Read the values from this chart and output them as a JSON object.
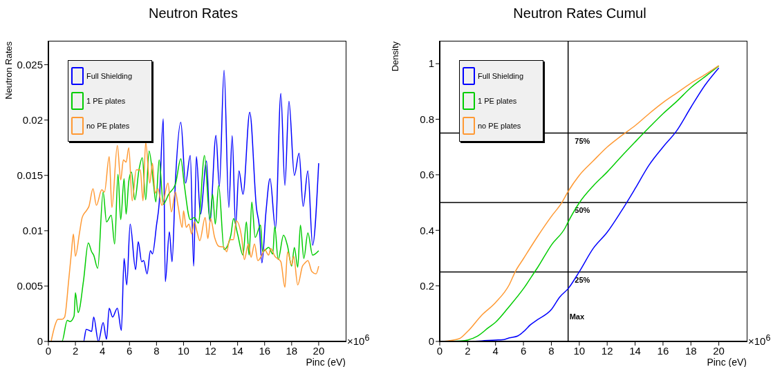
{
  "chart_data": [
    {
      "type": "line",
      "title": "Neutron Rates",
      "xlabel": "Pinc (eV)",
      "ylabel": "Neutron Rates",
      "legend": "top left",
      "annotations": [
        "×10$^{6}$"
      ],
      "xlim": [
        0,
        22
      ],
      "xticks": [
        0,
        2,
        4,
        6,
        8,
        10,
        12,
        14,
        16,
        18,
        20
      ],
      "ylim": [
        0,
        0.0271
      ],
      "yticks": [
        0,
        0.005,
        0.01,
        0.015,
        0.02,
        0.025
      ],
      "series": [
        {
          "name": "Full Shielding",
          "color": "#0000ff",
          "x": [
            0,
            2.6,
            2.8,
            3.2,
            3.35,
            3.7,
            4.05,
            4.3,
            4.5,
            4.75,
            5.1,
            5.4,
            5.6,
            5.8,
            6.05,
            6.45,
            6.65,
            6.9,
            7.05,
            7.3,
            7.55,
            7.7,
            8.0,
            8.2,
            8.5,
            8.65,
            8.95,
            9.15,
            9.4,
            9.8,
            10.15,
            10.5,
            10.75,
            10.95,
            11.25,
            11.7,
            11.95,
            12.4,
            12.65,
            13.0,
            13.35,
            13.6,
            13.85,
            14.1,
            14.4,
            14.9,
            15.4,
            15.6,
            15.8,
            16.1,
            16.4,
            16.8,
            17.2,
            17.5,
            17.8,
            18.2,
            18.55,
            18.85,
            19.2,
            19.55,
            20.0
          ],
          "values": [
            0,
            0,
            0.0011,
            0.0009,
            0.0022,
            0,
            0.0017,
            0.0002,
            0.003,
            0.0022,
            0.003,
            0.001,
            0.0075,
            0.0051,
            0.0106,
            0.0065,
            0.009,
            0.0072,
            0.0073,
            0.0061,
            0.0082,
            0.0079,
            0.0105,
            0.0125,
            0.0201,
            0.0054,
            0.0099,
            0.0072,
            0.0145,
            0.0198,
            0.0143,
            0.0168,
            0.0068,
            0.0167,
            0.0115,
            0.0163,
            0.0108,
            0.0186,
            0.014,
            0.0245,
            0.0121,
            0.0186,
            0.0104,
            0.0154,
            0.0133,
            0.0207,
            0.012,
            0.0105,
            0.0071,
            0.0117,
            0.0147,
            0.0102,
            0.0224,
            0.0141,
            0.0217,
            0.015,
            0.017,
            0.0122,
            0.0154,
            0.0087,
            0.0161
          ]
        },
        {
          "name": "1 PE plates",
          "color": "#00cc00",
          "x": [
            0.2,
            1.0,
            1.4,
            1.6,
            1.9,
            2.0,
            2.2,
            2.6,
            2.95,
            3.2,
            3.35,
            3.65,
            4.05,
            4.3,
            4.65,
            4.9,
            5.15,
            5.35,
            5.6,
            5.75,
            5.95,
            6.15,
            6.4,
            6.7,
            6.95,
            7.2,
            7.45,
            7.8,
            7.95,
            8.2,
            8.5,
            8.9,
            9.4,
            9.8,
            10.05,
            10.5,
            10.8,
            11.1,
            11.55,
            11.95,
            12.15,
            12.35,
            12.6,
            13.0,
            13.5,
            13.7,
            14.0,
            14.4,
            14.65,
            14.85,
            15.05,
            15.3,
            15.7,
            15.85,
            16.3,
            16.6,
            16.75,
            17.0,
            17.4,
            17.7,
            18.0,
            18.2,
            18.45,
            18.65,
            18.9,
            19.2,
            19.55,
            20.0
          ],
          "values": [
            0,
            0,
            0.0019,
            0.0018,
            0.0023,
            0.0044,
            0.0026,
            0.0055,
            0.0089,
            0.0081,
            0.0078,
            0.0066,
            0.0135,
            0.0108,
            0.0114,
            0.0088,
            0.0151,
            0.011,
            0.0147,
            0.0115,
            0.0145,
            0.0153,
            0.0128,
            0.0155,
            0.0166,
            0.0128,
            0.0172,
            0.014,
            0.0126,
            0.0164,
            0.0124,
            0.0133,
            0.0142,
            0.0165,
            0.0142,
            0.011,
            0.0112,
            0.0107,
            0.0168,
            0.011,
            0.0133,
            0.0106,
            0.0141,
            0.0083,
            0.0096,
            0.0111,
            0.0097,
            0.0078,
            0.0108,
            0.0078,
            0.0126,
            0.0094,
            0.0105,
            0.0081,
            0.0085,
            0.0079,
            0.0104,
            0.0074,
            0.0096,
            0.0086,
            0.0068,
            0.0085,
            0.0067,
            0.0105,
            0.0075,
            0.0098,
            0.0078,
            0.0082
          ]
        },
        {
          "name": "no PE plates",
          "color": "#ff9933",
          "x": [
            0.2,
            0.5,
            0.7,
            1.0,
            1.2,
            1.5,
            1.7,
            1.85,
            2.0,
            2.3,
            2.5,
            2.8,
            3.0,
            3.3,
            3.55,
            3.95,
            4.15,
            4.5,
            4.7,
            5.1,
            5.35,
            5.55,
            5.75,
            5.95,
            6.2,
            6.5,
            6.8,
            7.0,
            7.2,
            7.5,
            7.7,
            7.9,
            8.1,
            8.4,
            8.85,
            9.1,
            9.4,
            9.6,
            9.9,
            10.0,
            10.2,
            10.4,
            10.6,
            10.8,
            11.0,
            11.2,
            11.6,
            11.8,
            12.0,
            12.3,
            12.6,
            13.0,
            13.2,
            13.4,
            13.7,
            13.9,
            14.3,
            14.5,
            14.8,
            15.0,
            15.25,
            15.5,
            15.75,
            16.0,
            16.3,
            16.45,
            16.75,
            17.2,
            17.5,
            17.7,
            18.0,
            18.15,
            18.45,
            18.8,
            19.0,
            19.2,
            19.5,
            19.8,
            20.0
          ],
          "values": [
            0,
            0.0015,
            0.002,
            0.002,
            0.0022,
            0.0055,
            0.008,
            0.0097,
            0.0077,
            0.0098,
            0.0112,
            0.0118,
            0.0122,
            0.0138,
            0.0123,
            0.0137,
            0.0135,
            0.0167,
            0.0121,
            0.0177,
            0.0146,
            0.0164,
            0.0162,
            0.0175,
            0.0127,
            0.0155,
            0.0155,
            0.0127,
            0.018,
            0.0143,
            0.0161,
            0.0134,
            0.0138,
            0.0123,
            0.0143,
            0.0117,
            0.0135,
            0.0122,
            0.0103,
            0.0118,
            0.0103,
            0.0106,
            0.0097,
            0.0108,
            0.0099,
            0.0091,
            0.0112,
            0.0093,
            0.0111,
            0.0094,
            0.0086,
            0.0085,
            0.0081,
            0.0092,
            0.0092,
            0.0109,
            0.0094,
            0.0074,
            0.0088,
            0.0076,
            0.0088,
            0.0073,
            0.0077,
            0.0083,
            0.0078,
            0.0084,
            0.0077,
            0.0072,
            0.0049,
            0.0081,
            0.0069,
            0.0077,
            0.0051,
            0.0068,
            0.0071,
            0.0073,
            0.0063,
            0.0061,
            0.0068
          ]
        }
      ]
    },
    {
      "type": "line",
      "title": "Neutron Rates Cumul",
      "xlabel": "Pinc (eV)",
      "ylabel": "Density",
      "legend": "top left",
      "annotations": [
        "×10$^{6}$"
      ],
      "xlim": [
        0,
        22
      ],
      "xticks": [
        0,
        2,
        4,
        6,
        8,
        10,
        12,
        14,
        16,
        18,
        20
      ],
      "ylim": [
        0,
        1.08
      ],
      "yticks": [
        0,
        0.2,
        0.4,
        0.6,
        0.8,
        1
      ],
      "ref_lines": [
        {
          "axis": "y",
          "value": 0.75,
          "label": "75%"
        },
        {
          "axis": "y",
          "value": 0.5,
          "label": "50%"
        },
        {
          "axis": "y",
          "value": 0.25,
          "label": "25%"
        },
        {
          "axis": "x",
          "value": 9.2,
          "label": "Max"
        }
      ],
      "series": [
        {
          "name": "Full Shielding",
          "color": "#0000ff",
          "x": [
            0.2,
            2,
            3,
            4,
            4.5,
            5,
            5.6,
            6,
            6.5,
            7,
            8,
            8.6,
            9.2,
            10,
            11,
            12,
            13,
            14,
            15,
            16,
            17,
            18,
            19,
            20
          ],
          "values": [
            0,
            0,
            0.002,
            0.005,
            0.006,
            0.013,
            0.02,
            0.035,
            0.06,
            0.078,
            0.115,
            0.16,
            0.19,
            0.251,
            0.335,
            0.393,
            0.468,
            0.55,
            0.635,
            0.7,
            0.76,
            0.843,
            0.922,
            0.985
          ]
        },
        {
          "name": "1 PE plates",
          "color": "#00cc00",
          "x": [
            0.2,
            1.5,
            2,
            2.7,
            3.5,
            4,
            5,
            6,
            6.8,
            7,
            8,
            9,
            9.2,
            10,
            11,
            12,
            13,
            14,
            15,
            16,
            17,
            18,
            19,
            20
          ],
          "values": [
            0,
            0.002,
            0.005,
            0.019,
            0.05,
            0.069,
            0.127,
            0.19,
            0.25,
            0.265,
            0.347,
            0.41,
            0.43,
            0.499,
            0.56,
            0.61,
            0.665,
            0.718,
            0.77,
            0.82,
            0.865,
            0.914,
            0.953,
            0.992
          ]
        },
        {
          "name": "no PE plates",
          "color": "#ff9933",
          "x": [
            0.2,
            1.4,
            2,
            3,
            4,
            5,
            5.4,
            6,
            7,
            8,
            8.75,
            9.2,
            10,
            11,
            12,
            13,
            14,
            15,
            16,
            17,
            18,
            19,
            20
          ],
          "values": [
            0,
            0.01,
            0.036,
            0.094,
            0.14,
            0.206,
            0.25,
            0.298,
            0.377,
            0.45,
            0.5,
            0.54,
            0.598,
            0.65,
            0.7,
            0.74,
            0.777,
            0.82,
            0.86,
            0.895,
            0.93,
            0.96,
            0.993
          ]
        }
      ]
    }
  ]
}
